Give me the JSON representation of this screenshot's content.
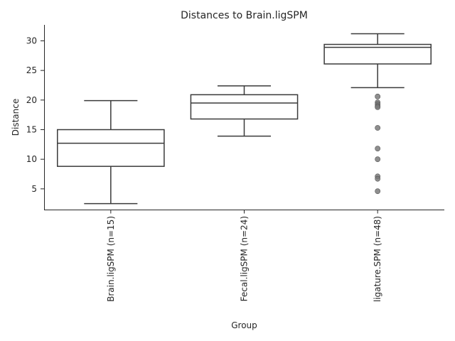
{
  "chart_data": {
    "type": "box",
    "title": "Distances to Brain.ligSPM",
    "xlabel": "Group",
    "ylabel": "Distance",
    "ylim": [
      1.5,
      32.7
    ],
    "yticks": [
      5,
      10,
      15,
      20,
      25,
      30
    ],
    "grid": false,
    "legend": "none",
    "box_color": "#ffffff",
    "line_color": "#3a3a3a",
    "outlier_color": "#7a7a7a",
    "categories": [
      "Brain.ligSPM (n=15)",
      "Fecal.ligSPM (n=24)",
      "ligature.SPM (n=48)"
    ],
    "boxes": [
      {
        "whisker_low": 2.5,
        "q1": 8.8,
        "median": 12.7,
        "q3": 15.0,
        "whisker_high": 19.9,
        "outliers": []
      },
      {
        "whisker_low": 13.9,
        "q1": 16.8,
        "median": 19.5,
        "q3": 20.9,
        "whisker_high": 22.4,
        "outliers": []
      },
      {
        "whisker_low": 22.1,
        "q1": 26.1,
        "median": 28.9,
        "q3": 29.4,
        "whisker_high": 31.2,
        "outliers": [
          20.6,
          19.6,
          19.3,
          19.0,
          18.8,
          15.3,
          11.8,
          10.0,
          7.1,
          6.7,
          4.6
        ]
      }
    ]
  }
}
